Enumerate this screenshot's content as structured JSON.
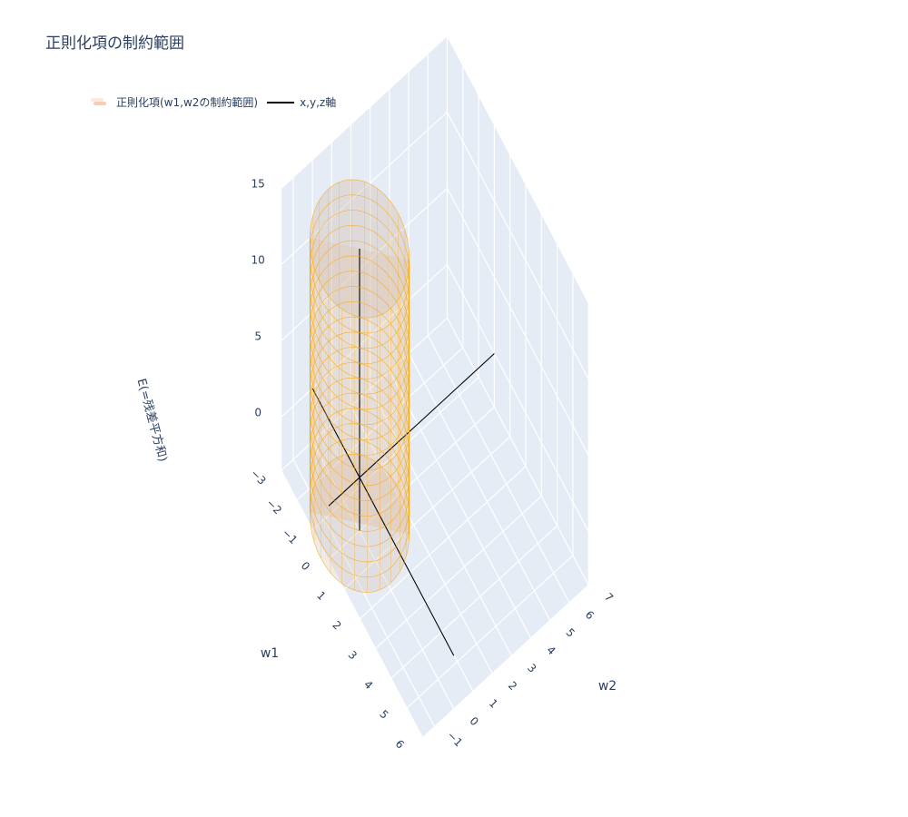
{
  "title": "正則化項の制約範囲",
  "legend": {
    "surface_label": "正則化項(w1,w2の制約範囲)",
    "line_label": "x,y,z軸"
  },
  "colors": {
    "background_wall": "#e5ecf6",
    "grid": "#ffffff",
    "surface_line": "#ffa500",
    "surface_fill": "#d8c6b8",
    "axis_line": "#000000",
    "text": "#2a3f5f",
    "legend_surface_1": "#fde0d0",
    "legend_surface_2": "#f9c9b0"
  },
  "chart_data": {
    "type": "surface3d",
    "title": "正則化項の制約範囲",
    "axes": {
      "x": {
        "label": "w1",
        "ticks": [
          "−3",
          "−2",
          "−1",
          "0",
          "1",
          "2",
          "3",
          "4",
          "5",
          "6"
        ],
        "range": [
          -3,
          6
        ]
      },
      "y": {
        "label": "w2",
        "ticks": [
          "−1",
          "0",
          "1",
          "2",
          "3",
          "4",
          "5",
          "6",
          "7"
        ],
        "range": [
          -1.6,
          7
        ]
      },
      "z": {
        "label": "E(=残差平方和)",
        "ticks": [
          "0",
          "5",
          "10",
          "15"
        ],
        "range": [
          -3.5,
          15
        ]
      }
    },
    "series": [
      {
        "name": "正則化項(w1,w2の制約範囲)",
        "kind": "cylinder",
        "radius": 2,
        "center": [
          0,
          0
        ],
        "z_range": [
          -3,
          15
        ],
        "rings": 19,
        "meridians": 24
      },
      {
        "name": "x,y,z軸",
        "kind": "lines",
        "segments": [
          [
            [
              -3,
              0,
              0
            ],
            [
              6,
              0,
              0
            ]
          ],
          [
            [
              0,
              -1.6,
              0
            ],
            [
              0,
              7,
              0
            ]
          ],
          [
            [
              0,
              0,
              -3.5
            ],
            [
              0,
              0,
              15
            ]
          ]
        ]
      }
    ]
  }
}
